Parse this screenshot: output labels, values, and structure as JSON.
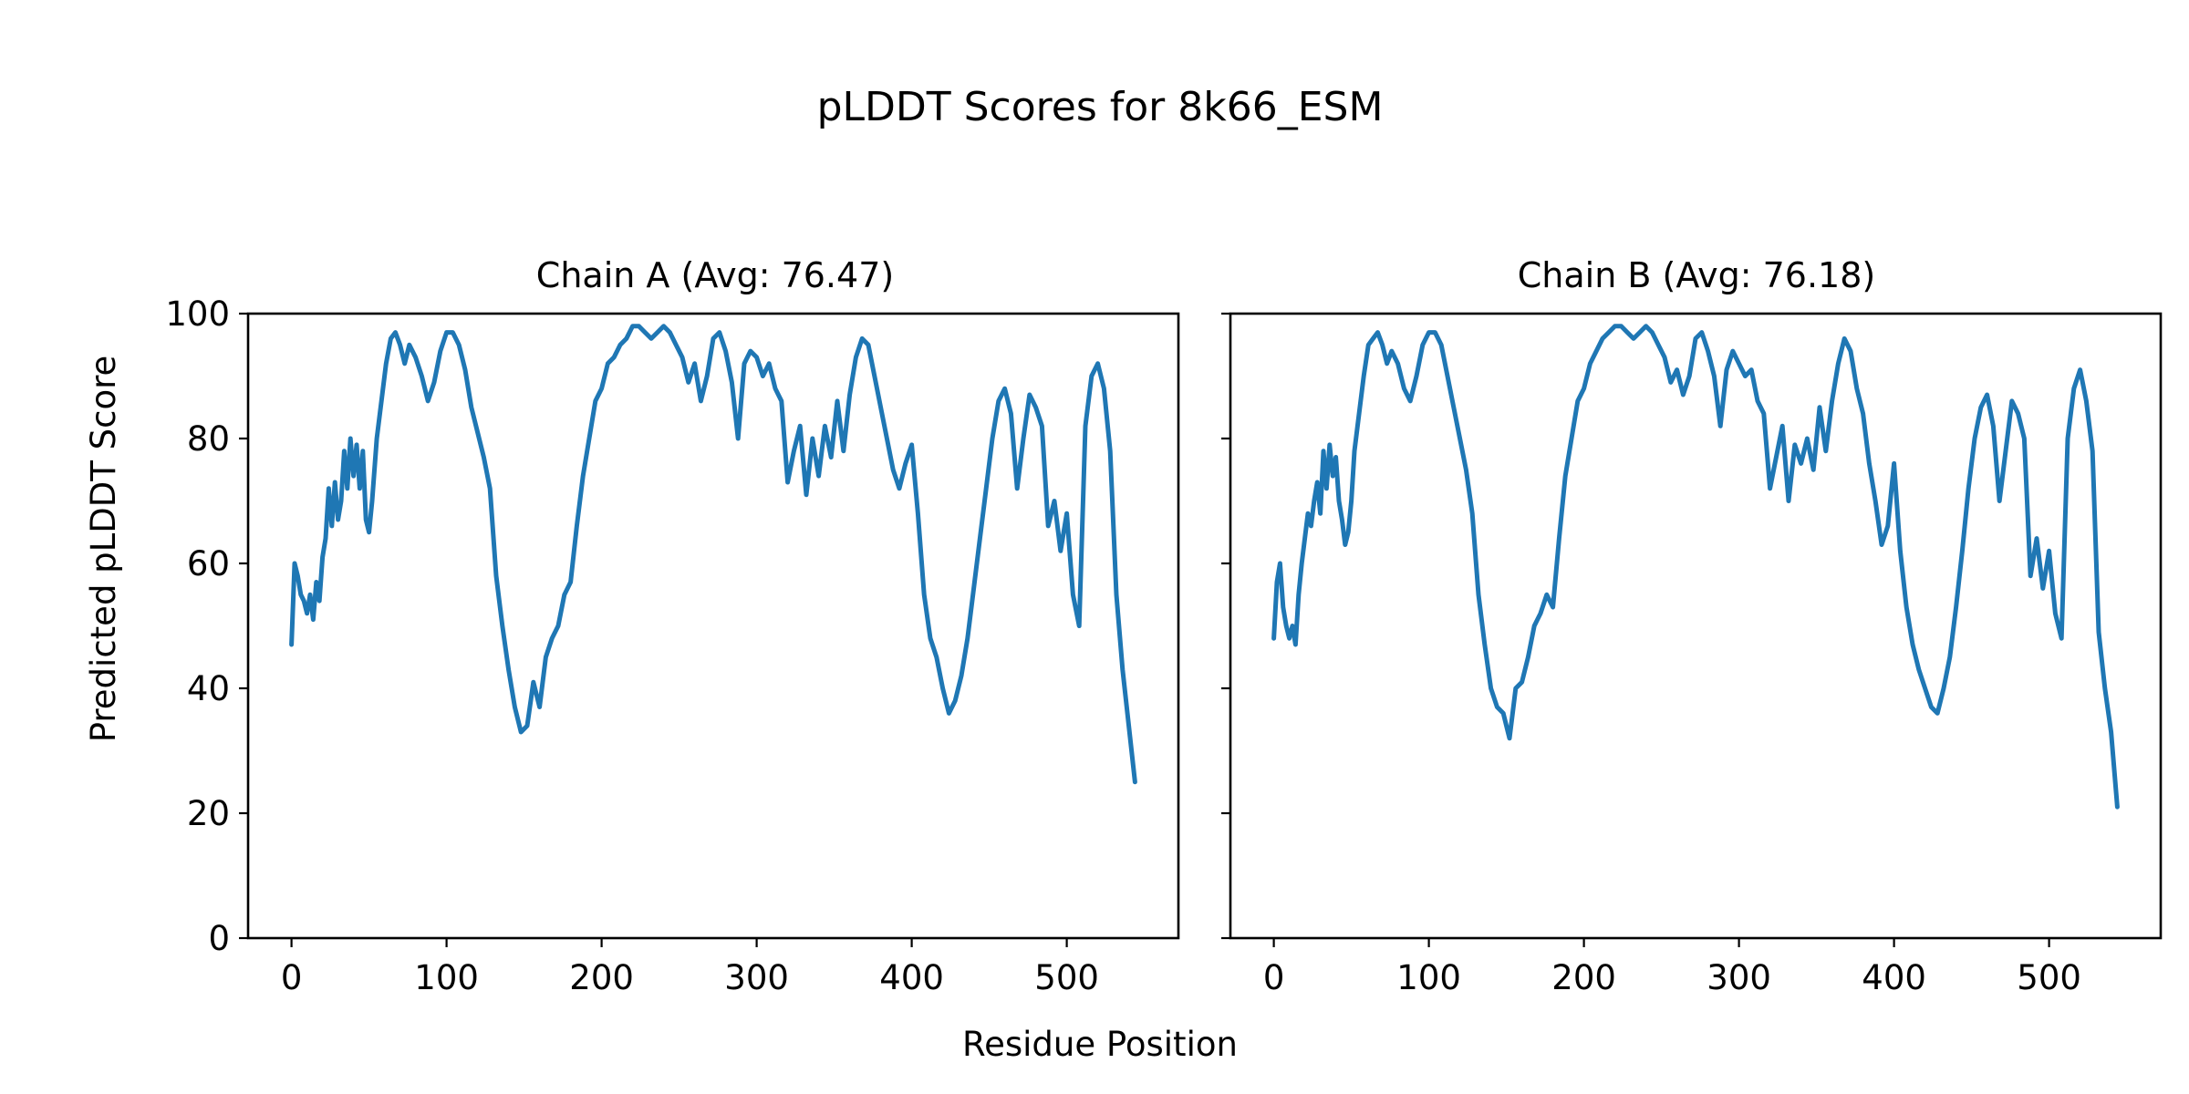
{
  "figure": {
    "title": "pLDDT Scores for 8k66_ESM",
    "xlabel": "Residue Position",
    "ylabel": "Predicted pLDDT Score",
    "line_color": "#1f77b4"
  },
  "chart_data": [
    {
      "type": "line",
      "title": "Chain A (Avg: 76.47)",
      "xlim": [
        -28,
        572
      ],
      "ylim": [
        0,
        100
      ],
      "xticks": [
        0,
        100,
        200,
        300,
        400,
        500
      ],
      "yticks": [
        0,
        20,
        40,
        60,
        80,
        100
      ],
      "grid": false,
      "series": [
        {
          "x": [
            0,
            2,
            4,
            6,
            8,
            10,
            12,
            14,
            16,
            18,
            20,
            22,
            24,
            26,
            28,
            30,
            32,
            34,
            36,
            38,
            40,
            42,
            44,
            46,
            48,
            50,
            52,
            55,
            58,
            61,
            64,
            67,
            70,
            73,
            76,
            80,
            84,
            88,
            92,
            96,
            100,
            104,
            108,
            112,
            116,
            120,
            124,
            128,
            132,
            136,
            140,
            144,
            148,
            152,
            156,
            160,
            164,
            168,
            172,
            176,
            180,
            184,
            188,
            192,
            196,
            200,
            204,
            208,
            212,
            216,
            220,
            224,
            228,
            232,
            236,
            240,
            244,
            248,
            252,
            256,
            260,
            264,
            268,
            272,
            276,
            280,
            284,
            288,
            292,
            296,
            300,
            304,
            308,
            312,
            316,
            320,
            324,
            328,
            332,
            336,
            340,
            344,
            348,
            352,
            356,
            360,
            364,
            368,
            372,
            376,
            380,
            384,
            388,
            392,
            396,
            400,
            404,
            408,
            412,
            416,
            420,
            424,
            428,
            432,
            436,
            440,
            444,
            448,
            452,
            456,
            460,
            464,
            468,
            472,
            476,
            480,
            484,
            488,
            492,
            496,
            500,
            504,
            508,
            512,
            516,
            520,
            524,
            528,
            532,
            536,
            540,
            544
          ],
          "y": [
            47,
            60,
            58,
            55,
            54,
            52,
            55,
            51,
            57,
            54,
            61,
            64,
            72,
            66,
            73,
            67,
            70,
            78,
            72,
            80,
            74,
            79,
            72,
            78,
            67,
            65,
            70,
            80,
            86,
            92,
            96,
            97,
            95,
            92,
            95,
            93,
            90,
            86,
            89,
            94,
            97,
            97,
            95,
            91,
            85,
            81,
            77,
            72,
            58,
            50,
            43,
            37,
            33,
            34,
            41,
            37,
            45,
            48,
            50,
            55,
            57,
            66,
            74,
            80,
            86,
            88,
            92,
            93,
            95,
            96,
            98,
            98,
            97,
            96,
            97,
            98,
            97,
            95,
            93,
            89,
            92,
            86,
            90,
            96,
            97,
            94,
            89,
            80,
            92,
            94,
            93,
            90,
            92,
            88,
            86,
            73,
            78,
            82,
            71,
            80,
            74,
            82,
            77,
            86,
            78,
            87,
            93,
            96,
            95,
            90,
            85,
            80,
            75,
            72,
            76,
            79,
            68,
            55,
            48,
            45,
            40,
            36,
            38,
            42,
            48,
            56,
            64,
            72,
            80,
            86,
            88,
            84,
            72,
            80,
            87,
            85,
            82,
            66,
            70,
            62,
            68,
            55,
            50,
            82,
            90,
            92,
            88,
            78,
            55,
            43,
            34,
            25
          ]
        }
      ]
    },
    {
      "type": "line",
      "title": "Chain B (Avg: 76.18)",
      "xlim": [
        -28,
        572
      ],
      "ylim": [
        0,
        100
      ],
      "xticks": [
        0,
        100,
        200,
        300,
        400,
        500
      ],
      "yticks": [
        0,
        20,
        40,
        60,
        80,
        100
      ],
      "grid": false,
      "series": [
        {
          "x": [
            0,
            2,
            4,
            6,
            8,
            10,
            12,
            14,
            16,
            18,
            20,
            22,
            24,
            26,
            28,
            30,
            32,
            34,
            36,
            38,
            40,
            42,
            44,
            46,
            48,
            50,
            52,
            55,
            58,
            61,
            64,
            67,
            70,
            73,
            76,
            80,
            84,
            88,
            92,
            96,
            100,
            104,
            108,
            112,
            116,
            120,
            124,
            128,
            132,
            136,
            140,
            144,
            148,
            152,
            156,
            160,
            164,
            168,
            172,
            176,
            180,
            184,
            188,
            192,
            196,
            200,
            204,
            208,
            212,
            216,
            220,
            224,
            228,
            232,
            236,
            240,
            244,
            248,
            252,
            256,
            260,
            264,
            268,
            272,
            276,
            280,
            284,
            288,
            292,
            296,
            300,
            304,
            308,
            312,
            316,
            320,
            324,
            328,
            332,
            336,
            340,
            344,
            348,
            352,
            356,
            360,
            364,
            368,
            372,
            376,
            380,
            384,
            388,
            392,
            396,
            400,
            404,
            408,
            412,
            416,
            420,
            424,
            428,
            432,
            436,
            440,
            444,
            448,
            452,
            456,
            460,
            464,
            468,
            472,
            476,
            480,
            484,
            488,
            492,
            496,
            500,
            504,
            508,
            512,
            516,
            520,
            524,
            528,
            532,
            536,
            540,
            544
          ],
          "y": [
            48,
            57,
            60,
            53,
            50,
            48,
            50,
            47,
            55,
            60,
            64,
            68,
            66,
            70,
            73,
            68,
            78,
            72,
            79,
            74,
            77,
            70,
            67,
            63,
            65,
            70,
            78,
            84,
            90,
            95,
            96,
            97,
            95,
            92,
            94,
            92,
            88,
            86,
            90,
            95,
            97,
            97,
            95,
            90,
            85,
            80,
            75,
            68,
            55,
            47,
            40,
            37,
            36,
            32,
            40,
            41,
            45,
            50,
            52,
            55,
            53,
            64,
            74,
            80,
            86,
            88,
            92,
            94,
            96,
            97,
            98,
            98,
            97,
            96,
            97,
            98,
            97,
            95,
            93,
            89,
            91,
            87,
            90,
            96,
            97,
            94,
            90,
            82,
            91,
            94,
            92,
            90,
            91,
            86,
            84,
            72,
            77,
            82,
            70,
            79,
            76,
            80,
            75,
            85,
            78,
            86,
            92,
            96,
            94,
            88,
            84,
            76,
            70,
            63,
            66,
            76,
            62,
            53,
            47,
            43,
            40,
            37,
            36,
            40,
            45,
            53,
            62,
            72,
            80,
            85,
            87,
            82,
            70,
            78,
            86,
            84,
            80,
            58,
            64,
            56,
            62,
            52,
            48,
            80,
            88,
            91,
            86,
            78,
            49,
            40,
            33,
            21
          ]
        }
      ]
    }
  ]
}
